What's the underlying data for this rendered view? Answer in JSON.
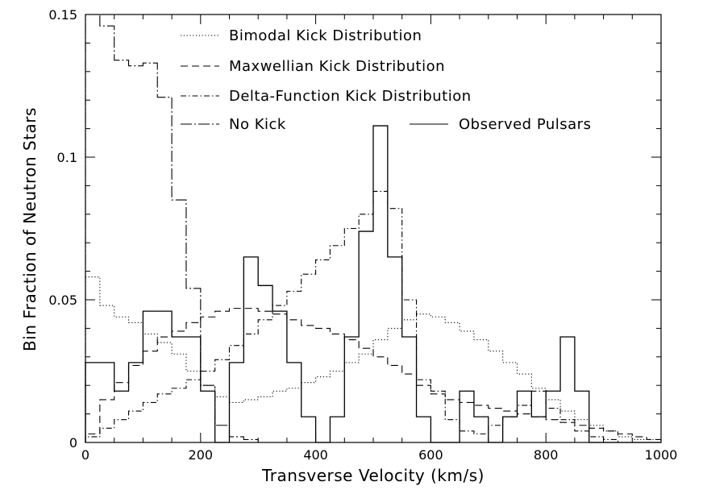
{
  "chart_data": {
    "type": "line",
    "title": "",
    "xlabel": "Transverse Velocity (km/s)",
    "ylabel": "Bin Fraction of Neutron Stars",
    "xlim": [
      0,
      1000
    ],
    "ylim": [
      0,
      0.15
    ],
    "x_ticks": [
      0,
      200,
      400,
      600,
      800,
      1000
    ],
    "x_tick_labels": [
      "0",
      "200",
      "400",
      "600",
      "800",
      "1000"
    ],
    "y_ticks": [
      0,
      0.05,
      0.1,
      0.15
    ],
    "y_tick_labels": [
      "0",
      "0.05",
      "0.1",
      "0.15"
    ],
    "grid": false,
    "bin_width": 25,
    "bin_edges": [
      0,
      25,
      50,
      75,
      100,
      125,
      150,
      175,
      200,
      225,
      250,
      275,
      300,
      325,
      350,
      375,
      400,
      425,
      450,
      475,
      500,
      525,
      550,
      575,
      600,
      625,
      650,
      675,
      700,
      725,
      750,
      775,
      800,
      825,
      850,
      875,
      900,
      925,
      950,
      975,
      1000
    ],
    "legend_position": "top",
    "series": [
      {
        "name": "Bimodal Kick Distribution",
        "style": "dotted",
        "values": [
          0.058,
          0.048,
          0.044,
          0.042,
          0.038,
          0.035,
          0.031,
          0.025,
          0.02,
          0.016,
          0.014,
          0.015,
          0.016,
          0.018,
          0.019,
          0.021,
          0.023,
          0.025,
          0.028,
          0.031,
          0.036,
          0.04,
          0.043,
          0.045,
          0.044,
          0.042,
          0.039,
          0.036,
          0.032,
          0.028,
          0.024,
          0.019,
          0.015,
          0.011,
          0.008,
          0.006,
          0.004,
          0.002,
          0.001,
          0.001
        ]
      },
      {
        "name": "Maxwellian Kick Distribution",
        "style": "dashed",
        "values": [
          0.003,
          0.015,
          0.021,
          0.027,
          0.032,
          0.037,
          0.039,
          0.042,
          0.044,
          0.046,
          0.047,
          0.047,
          0.046,
          0.045,
          0.043,
          0.041,
          0.04,
          0.038,
          0.036,
          0.033,
          0.03,
          0.027,
          0.024,
          0.02,
          0.017,
          0.015,
          0.014,
          0.013,
          0.012,
          0.011,
          0.01,
          0.009,
          0.008,
          0.007,
          0.006,
          0.005,
          0.004,
          0.003,
          0.002,
          0.001
        ]
      },
      {
        "name": "Delta-Function Kick Distribution",
        "style": "dash-dot",
        "values": [
          0.002,
          0.005,
          0.008,
          0.011,
          0.014,
          0.017,
          0.019,
          0.022,
          0.025,
          0.029,
          0.034,
          0.038,
          0.043,
          0.048,
          0.053,
          0.059,
          0.064,
          0.069,
          0.075,
          0.08,
          0.088,
          0.082,
          0.05,
          0.022,
          0.018,
          0.008,
          0.004,
          0.003,
          0.006,
          0.009,
          0.013,
          0.018,
          0.012,
          0.008,
          0.004,
          0.002,
          0.001,
          0.0,
          0.0,
          0.0
        ]
      },
      {
        "name": "No Kick",
        "style": "long-dash-dot",
        "values": [
          0.15,
          0.146,
          0.134,
          0.132,
          0.133,
          0.121,
          0.085,
          0.054,
          0.02,
          0.006,
          0.002,
          0.001,
          0.0,
          0.0,
          0.0,
          0.0,
          0.0,
          0.0,
          0.0,
          0.0,
          0.0,
          0.0,
          0.0,
          0.0,
          0.0,
          0.0,
          0.0,
          0.0,
          0.0,
          0.0,
          0.0,
          0.0,
          0.0,
          0.0,
          0.0,
          0.0,
          0.0,
          0.0,
          0.0,
          0.0
        ]
      },
      {
        "name": "Observed Pulsars",
        "style": "solid",
        "values": [
          0.028,
          0.028,
          0.018,
          0.028,
          0.046,
          0.046,
          0.037,
          0.037,
          0.018,
          0.0,
          0.028,
          0.065,
          0.055,
          0.046,
          0.028,
          0.009,
          0.0,
          0.009,
          0.037,
          0.074,
          0.111,
          0.065,
          0.037,
          0.009,
          0.0,
          0.0,
          0.018,
          0.009,
          0.0,
          0.009,
          0.018,
          0.009,
          0.018,
          0.037,
          0.018,
          0.0,
          0.0,
          0.0,
          0.0,
          0.0
        ]
      }
    ]
  }
}
